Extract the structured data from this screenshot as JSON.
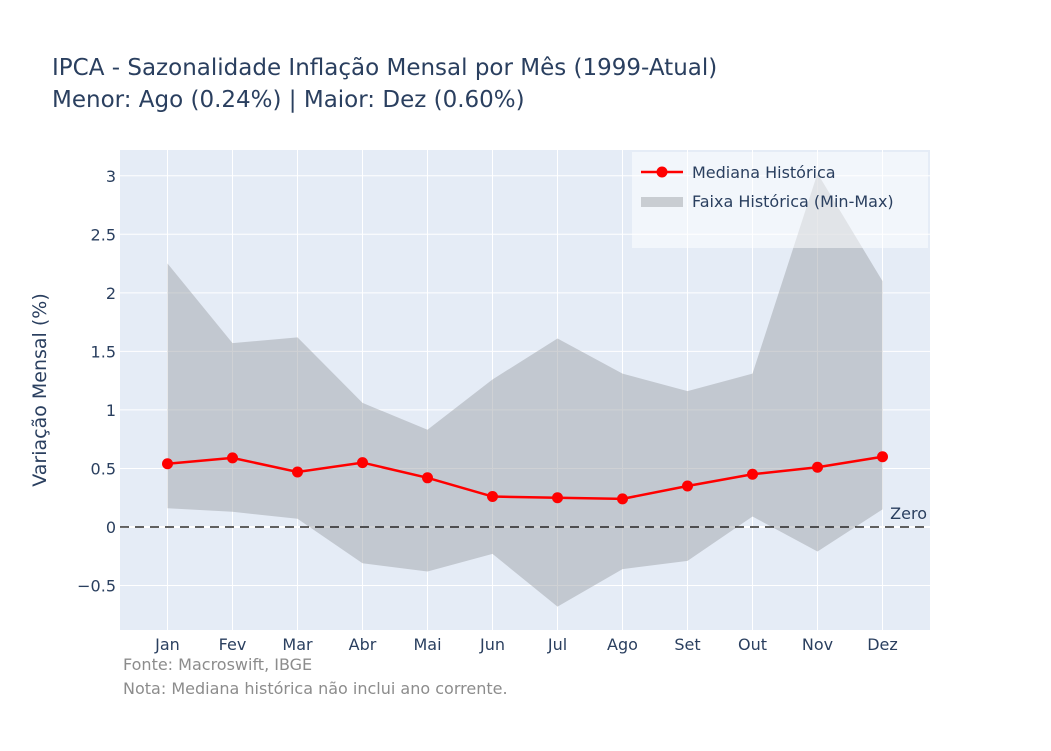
{
  "chart_data": {
    "type": "line",
    "title": "IPCA - Sazonalidade Inflação Mensal por Mês (1999-Atual)",
    "subtitle": "Menor: Ago (0.24%) | Maior: Dez (0.60%)",
    "xlabel": "",
    "ylabel": "Variação Mensal (%)",
    "categories": [
      "Jan",
      "Fev",
      "Mar",
      "Abr",
      "Mai",
      "Jun",
      "Jul",
      "Ago",
      "Set",
      "Out",
      "Nov",
      "Dez"
    ],
    "ylim": [
      -0.88,
      3.22
    ],
    "yticks": [
      -0.5,
      0,
      0.5,
      1,
      1.5,
      2,
      2.5,
      3
    ],
    "ytick_labels": [
      "−0.5",
      "0",
      "0.5",
      "1",
      "1.5",
      "2",
      "2.5",
      "3"
    ],
    "series": [
      {
        "name": "Mediana Histórica",
        "color": "#ff0000",
        "values": [
          0.54,
          0.59,
          0.47,
          0.55,
          0.42,
          0.26,
          0.25,
          0.24,
          0.35,
          0.45,
          0.51,
          0.6
        ]
      },
      {
        "name": "Faixa Histórica (Min-Max)",
        "color": "#c5c9cf",
        "max": [
          2.25,
          1.57,
          1.62,
          1.06,
          0.83,
          1.26,
          1.61,
          1.31,
          1.16,
          1.31,
          3.02,
          2.1
        ],
        "min": [
          0.16,
          0.13,
          0.07,
          -0.31,
          -0.38,
          -0.23,
          -0.68,
          -0.36,
          -0.29,
          0.09,
          -0.21,
          0.15
        ]
      }
    ],
    "reference_line": {
      "value": 0,
      "label": "Zero"
    },
    "legend": "top-right",
    "grid": true
  },
  "footer": {
    "source": "Fonte: Macroswift, IBGE",
    "note": "Nota: Mediana histórica não inclui ano corrente."
  }
}
